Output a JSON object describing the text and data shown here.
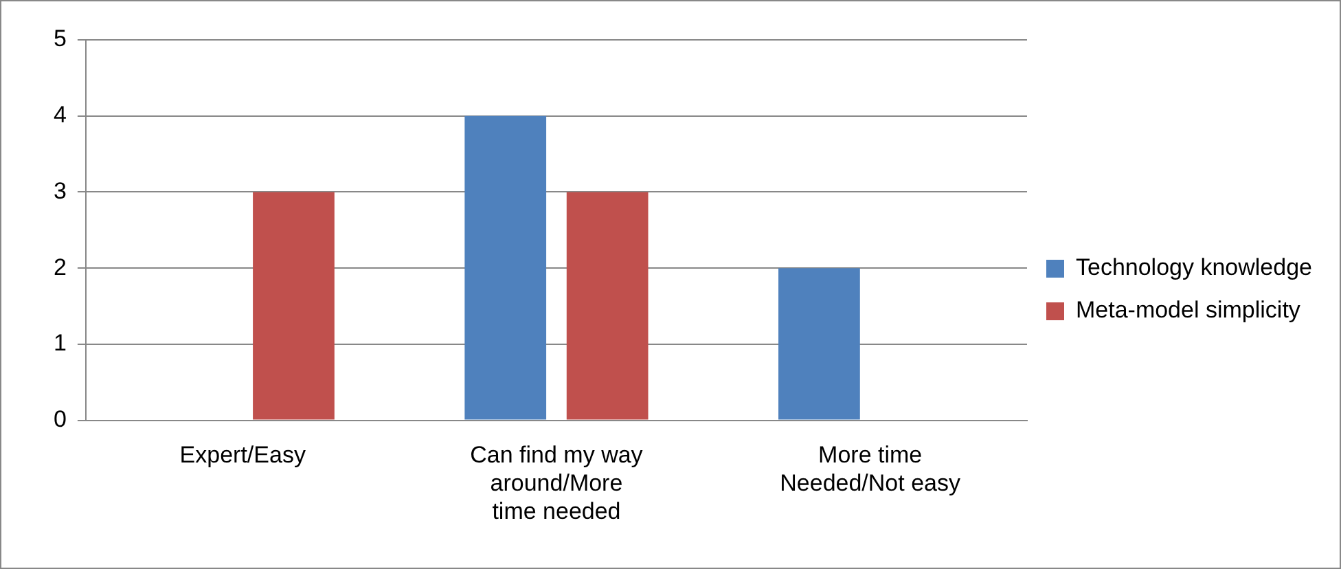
{
  "chart_data": {
    "type": "bar",
    "categories": [
      "Expert/Easy",
      "Can find my way around/More time needed",
      "More time Needed/Not easy"
    ],
    "series": [
      {
        "name": "Technology knowledge",
        "color": "#4f81bd",
        "values": [
          0,
          4,
          2
        ]
      },
      {
        "name": "Meta-model simplicity",
        "color": "#c0504d",
        "values": [
          3,
          3,
          0
        ]
      }
    ],
    "ylim": [
      0,
      5
    ],
    "yticks": [
      0,
      1,
      2,
      3,
      4,
      5
    ],
    "grid": "y",
    "legend": "right"
  }
}
